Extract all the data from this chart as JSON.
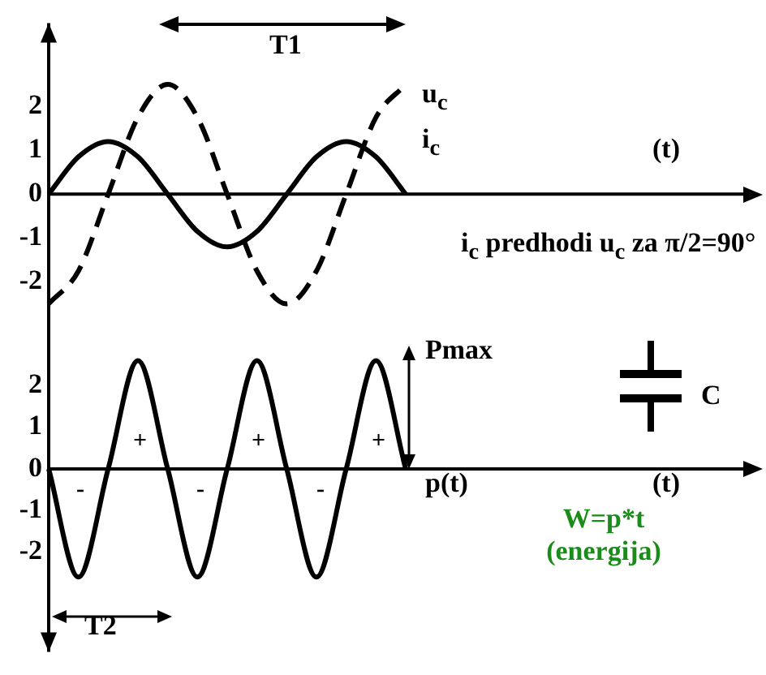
{
  "chart_data": [
    {
      "type": "line",
      "categories": [
        null,
        null,
        null,
        null,
        null,
        null,
        null,
        null,
        null,
        null,
        null,
        null,
        null,
        null,
        null,
        null,
        null,
        null,
        null,
        null,
        null,
        null,
        null,
        null,
        null
      ],
      "series": [
        {
          "name": "u$_{c}$",
          "color": "#000000",
          "line_style": "dashed",
          "values": [
            -2.5,
            -1.75,
            0,
            1.75,
            2.5,
            1.75,
            0,
            -1.75,
            -2.5,
            -1.75,
            0,
            1.75,
            2.5,
            null,
            null,
            null,
            null,
            null,
            null,
            null,
            null,
            null,
            null,
            null,
            null
          ]
        },
        {
          "name": "i$_{c}$",
          "color": "#000000",
          "line_style": "solid",
          "values": [
            0,
            0.85,
            1.2,
            0.85,
            0,
            -0.85,
            -1.2,
            -0.85,
            0,
            0.85,
            1.2,
            0.85,
            0,
            null,
            null,
            null,
            null,
            null,
            null,
            null,
            null,
            null,
            null,
            null,
            null
          ]
        }
      ],
      "ylim": [
        -3,
        3.9
      ],
      "yticks": [
        2,
        1,
        0,
        -1,
        -2
      ],
      "xlabel": "(t)",
      "annotations": [
        "T1",
        "i$_{c}$ predhodi u$_{c}$ za π/2=90°"
      ]
    },
    {
      "type": "line",
      "categories": [
        null,
        null,
        null,
        null,
        null,
        null,
        null,
        null,
        null,
        null,
        null,
        null,
        null,
        null,
        null,
        null,
        null,
        null,
        null,
        null,
        null,
        null,
        null,
        null,
        null
      ],
      "series": [
        {
          "name": "p(t)",
          "color": "#000000",
          "line_style": "solid",
          "values": [
            0,
            -2.6,
            0,
            2.6,
            0,
            -2.6,
            0,
            2.6,
            0,
            -2.6,
            0,
            2.6,
            0,
            null,
            null,
            null,
            null,
            null,
            null,
            null,
            null,
            null,
            null,
            null,
            null
          ]
        }
      ],
      "ylim": [
        -4.4,
        3.5
      ],
      "yticks": [
        2,
        1,
        0,
        -1,
        -2
      ],
      "xlabel": "(t)",
      "annotations": [
        "Pmax",
        "C",
        "+",
        "+",
        "+",
        "-",
        "-",
        "-",
        "W=p*t (energija)",
        "T2"
      ]
    }
  ]
}
